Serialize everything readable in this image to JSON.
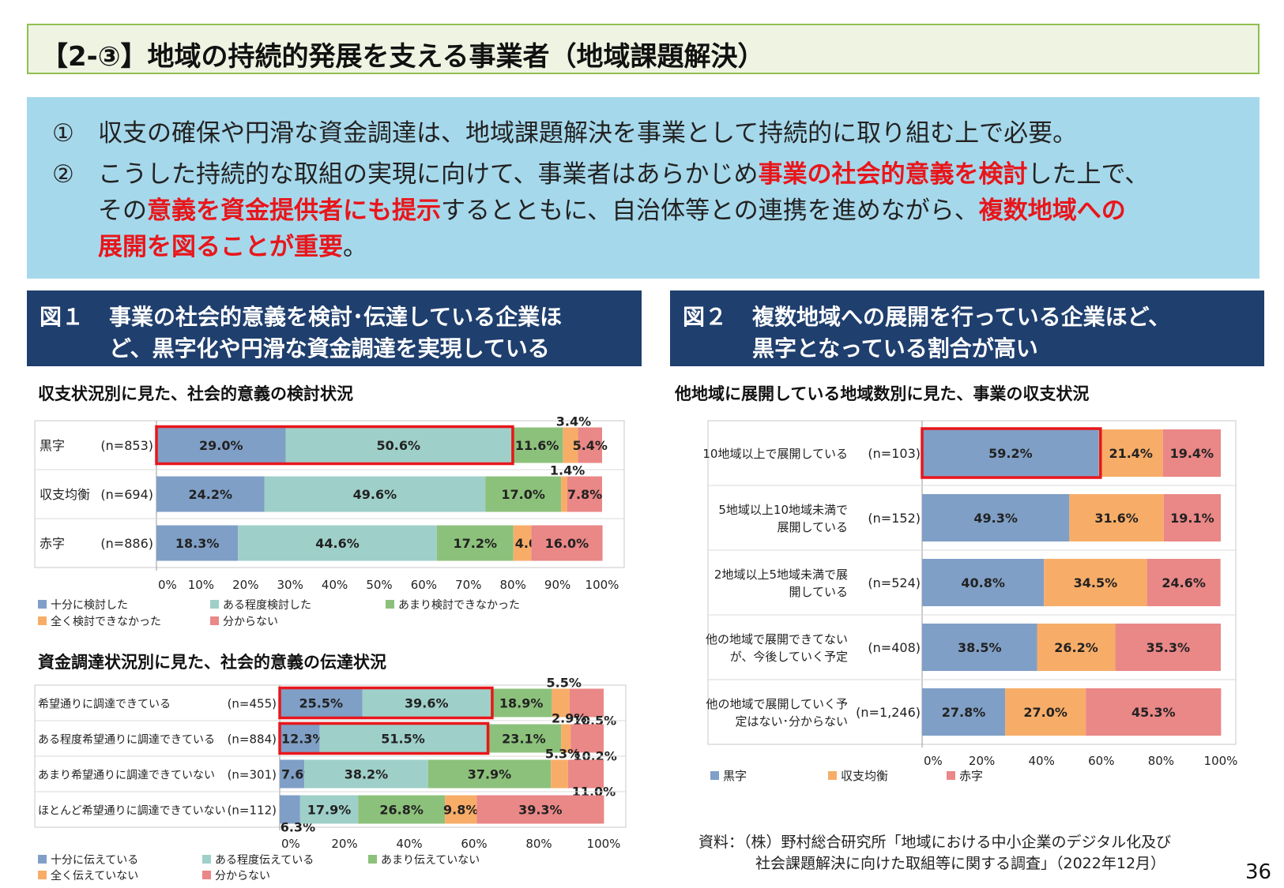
{
  "title": "【2-③】地域の持続的発展を支える事業者（地域課題解決）",
  "summary": {
    "p1": {
      "num": "①",
      "text": "収支の確保や円滑な資金調達は、地域課題解決を事業として持続的に取り組む上で必要。"
    },
    "p2": {
      "num": "②",
      "l1a": "こうした持続的な取組の実現に向けて、事業者はあらかじめ",
      "l1b": "事業の社会的意義を検討",
      "l1c": "した上で、",
      "l2a": "その",
      "l2b": "意義を資金提供者にも提示",
      "l2c": "するとともに、自治体等との連携を進めながら、",
      "l2d": "複数地域への",
      "l3a": "展開を図ることが重要",
      "l3b": "。"
    }
  },
  "fig1": {
    "no": "図１",
    "title_l1": "事業の社会的意義を検討･伝達している企業ほ",
    "title_l2": "ど、黒字化や円滑な資金調達を実現している"
  },
  "fig2": {
    "no": "図２",
    "title_l1": "複数地域への展開を行っている企業ほど、",
    "title_l2": "黒字となっている割合が高い"
  },
  "chart1_subtitle": "収支状況別に見た、社会的意義の検討状況",
  "chart2_subtitle": "資金調達状況別に見た、社会的意義の伝達状況",
  "chart3_subtitle": "他地域に展開している地域数別に見た、事業の収支状況",
  "chart_data": [
    {
      "type": "bar",
      "orientation": "horizontal-stacked",
      "title": "収支状況別に見た、社会的意義の検討状況",
      "categories": [
        "黒字",
        "収支均衡",
        "赤字"
      ],
      "n_labels": [
        "(n=853)",
        "(n=694)",
        "(n=886)"
      ],
      "series": [
        {
          "name": "十分に検討した",
          "values": [
            29.0,
            24.2,
            18.3
          ],
          "color": "#7f9fc6"
        },
        {
          "name": "ある程度検討した",
          "values": [
            50.6,
            49.6,
            44.6
          ],
          "color": "#9fcfc9"
        },
        {
          "name": "あまり検討できなかった",
          "values": [
            11.6,
            17.0,
            17.2
          ],
          "color": "#8cc17b"
        },
        {
          "name": "全く検討できなかった",
          "values": [
            3.4,
            1.4,
            4.0
          ],
          "color": "#f7ad68"
        },
        {
          "name": "分からない",
          "values": [
            5.4,
            7.8,
            16.0
          ],
          "color": "#ea8787"
        }
      ],
      "xlim": [
        0,
        100
      ],
      "xticks": [
        "0%",
        "10%",
        "20%",
        "30%",
        "40%",
        "50%",
        "60%",
        "70%",
        "80%",
        "90%",
        "100%"
      ],
      "highlight_rows": [
        0
      ],
      "legend_position": "bottom"
    },
    {
      "type": "bar",
      "orientation": "horizontal-stacked",
      "title": "資金調達状況別に見た、社会的意義の伝達状況",
      "categories": [
        "希望通りに調達できている",
        "ある程度希望通りに調達できている",
        "あまり希望通りに調達できていない",
        "ほとんど希望通りに調達できていない"
      ],
      "n_labels": [
        "(n=455)",
        "(n=884)",
        "(n=301)",
        "(n=112)"
      ],
      "series": [
        {
          "name": "十分に伝えている",
          "values": [
            25.5,
            12.3,
            7.6,
            6.3
          ],
          "color": "#7f9fc6"
        },
        {
          "name": "ある程度伝えている",
          "values": [
            39.6,
            51.5,
            38.2,
            17.9
          ],
          "color": "#9fcfc9"
        },
        {
          "name": "あまり伝えていない",
          "values": [
            18.9,
            23.1,
            37.9,
            26.8
          ],
          "color": "#8cc17b"
        },
        {
          "name": "全く伝えていない",
          "values": [
            5.5,
            2.9,
            5.3,
            9.8
          ],
          "color": "#f7ad68"
        },
        {
          "name": "分からない",
          "values": [
            10.5,
            10.2,
            11.0,
            39.3
          ],
          "color": "#ea8787"
        }
      ],
      "xlim": [
        0,
        100
      ],
      "xticks": [
        "0%",
        "20%",
        "40%",
        "60%",
        "80%",
        "100%"
      ],
      "highlight_rows": [
        0,
        1
      ],
      "legend_position": "bottom"
    },
    {
      "type": "bar",
      "orientation": "horizontal-stacked",
      "title": "他地域に展開している地域数別に見た、事業の収支状況",
      "categories": [
        "10地域以上で展開している",
        "5地域以上10地域未満で展開している",
        "2地域以上5地域未満で展開している",
        "他の地域で展開できてないが、今後していく予定",
        "他の地域で展開していく予定はない･分からない"
      ],
      "category_lines": [
        [
          "10地域以上で展開している"
        ],
        [
          "5地域以上10地域未満で",
          "展開している"
        ],
        [
          "2地域以上5地域未満で展",
          "開している"
        ],
        [
          "他の地域で展開できてない",
          "が、今後していく予定"
        ],
        [
          "他の地域で展開していく予",
          "定はない･分からない"
        ]
      ],
      "n_labels": [
        "(n=103)",
        "(n=152)",
        "(n=524)",
        "(n=408)",
        "(n=1,246)"
      ],
      "series": [
        {
          "name": "黒字",
          "values": [
            59.2,
            49.3,
            40.8,
            38.5,
            27.8
          ],
          "color": "#7f9fc6"
        },
        {
          "name": "収支均衡",
          "values": [
            21.4,
            31.6,
            34.5,
            26.2,
            27.0
          ],
          "color": "#f7ad68"
        },
        {
          "name": "赤字",
          "values": [
            19.4,
            19.1,
            24.6,
            35.3,
            45.3
          ],
          "color": "#ea8787"
        }
      ],
      "xlim": [
        0,
        100
      ],
      "xticks": [
        "0%",
        "20%",
        "40%",
        "60%",
        "80%",
        "100%"
      ],
      "highlight_rows": [
        0
      ],
      "legend_position": "bottom"
    }
  ],
  "source_l1": "資料：（株）野村総合研究所「地域における中小企業のデジタル化及び",
  "source_l2": "社会課題解決に向けた取組等に関する調査」（2022年12月）",
  "page_number": "36"
}
